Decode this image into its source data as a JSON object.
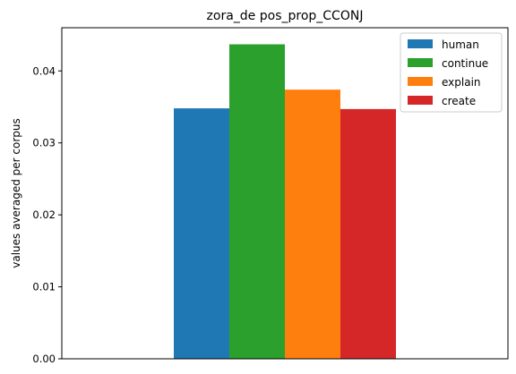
{
  "chart_data": {
    "type": "bar",
    "title": "zora_de pos_prop_CCONJ",
    "xlabel": "",
    "ylabel": "values averaged per corpus",
    "ylim": [
      0,
      0.046
    ],
    "yticks": [
      "0.00",
      "0.01",
      "0.02",
      "0.03",
      "0.04"
    ],
    "grid": false,
    "legend_position": "top-right",
    "categories": [
      ""
    ],
    "series": [
      {
        "name": "human",
        "values": [
          0.0348
        ],
        "color": "#1f77b4"
      },
      {
        "name": "continue",
        "values": [
          0.0437
        ],
        "color": "#2ca02c"
      },
      {
        "name": "explain",
        "values": [
          0.0374
        ],
        "color": "#ff7f0e"
      },
      {
        "name": "create",
        "values": [
          0.0347
        ],
        "color": "#d62728"
      }
    ]
  }
}
